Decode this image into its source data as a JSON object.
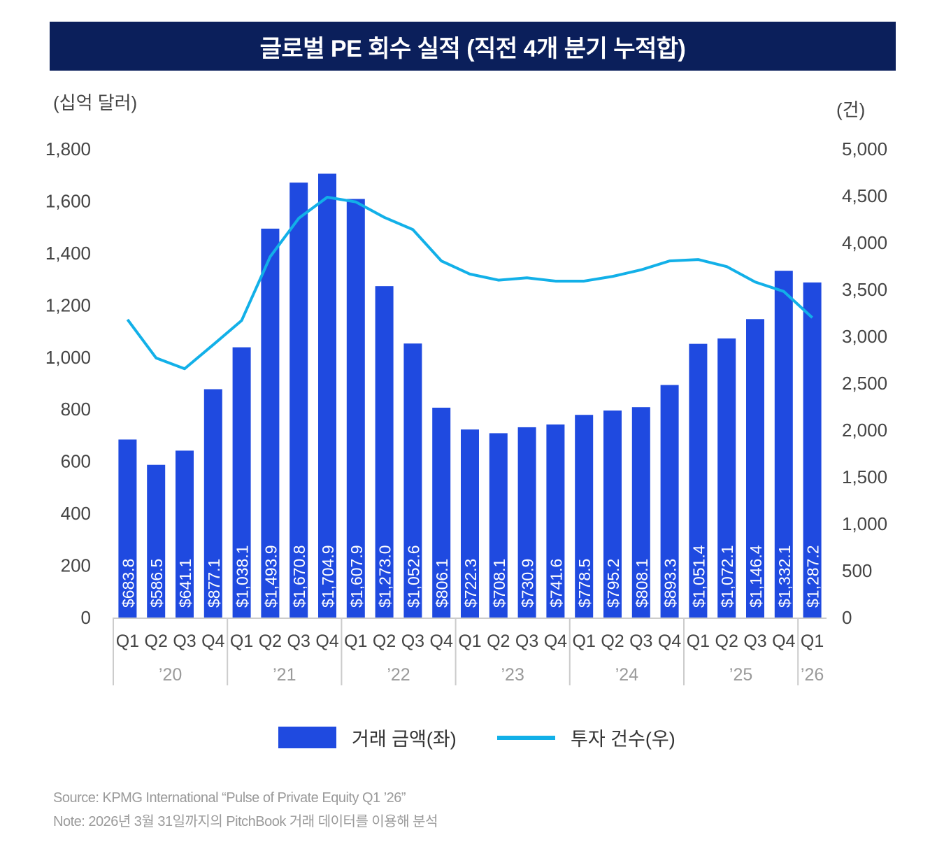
{
  "chart_data": {
    "type": "bar+line",
    "title": "글로벌 PE 회수 실적 (직전 4개 분기 누적합)",
    "left_unit": "(십억 달러)",
    "right_unit": "(건)",
    "categories": [
      "Q1",
      "Q2",
      "Q3",
      "Q4",
      "Q1",
      "Q2",
      "Q3",
      "Q4",
      "Q1",
      "Q2",
      "Q3",
      "Q4",
      "Q1",
      "Q2",
      "Q3",
      "Q4",
      "Q1",
      "Q2",
      "Q3",
      "Q4",
      "Q1",
      "Q2",
      "Q3",
      "Q4",
      "Q1"
    ],
    "years": [
      {
        "label": "’20",
        "span": 4
      },
      {
        "label": "’21",
        "span": 4
      },
      {
        "label": "’22",
        "span": 4
      },
      {
        "label": "’23",
        "span": 4
      },
      {
        "label": "’24",
        "span": 4
      },
      {
        "label": "’25",
        "span": 4
      },
      {
        "label": "’26",
        "span": 1
      }
    ],
    "series": [
      {
        "name": "거래 금액(좌)",
        "type": "bar",
        "axis": "left",
        "color": "#1f4ae0",
        "values": [
          683.8,
          586.5,
          641.1,
          877.1,
          1038.1,
          1493.9,
          1670.8,
          1704.9,
          1607.9,
          1273.0,
          1052.6,
          806.1,
          722.3,
          708.1,
          730.9,
          741.6,
          778.5,
          795.2,
          808.1,
          893.3,
          1051.4,
          1072.1,
          1146.4,
          1332.1,
          1287.2
        ],
        "labels": [
          "$683.8",
          "$586.5",
          "$641.1",
          "$877.1",
          "$1,038.1",
          "$1,493.9",
          "$1,670.8",
          "$1,704.9",
          "$1,607.9",
          "$1,273.0",
          "$1,052.6",
          "$806.1",
          "$722.3",
          "$708.1",
          "$730.9",
          "$741.6",
          "$778.5",
          "$795.2",
          "$808.1",
          "$893.3",
          "$1,051.4",
          "$1,072.1",
          "$1,146.4",
          "$1,332.1",
          "$1,287.2"
        ]
      },
      {
        "name": "투자 건수(우)",
        "type": "line",
        "axis": "right",
        "color": "#12b0e8",
        "values": [
          3180,
          2770,
          2655,
          2910,
          3170,
          3850,
          4260,
          4485,
          4435,
          4270,
          4140,
          3805,
          3665,
          3600,
          3625,
          3590,
          3590,
          3640,
          3710,
          3805,
          3820,
          3745,
          3580,
          3480,
          3200
        ]
      }
    ],
    "left_axis": {
      "min": 0,
      "max": 1800,
      "ticks": [
        "0",
        "200",
        "400",
        "600",
        "800",
        "1,000",
        "1,200",
        "1,400",
        "1,600",
        "1,800"
      ]
    },
    "right_axis": {
      "min": 0,
      "max": 5000,
      "ticks": [
        "0",
        "500",
        "1,000",
        "1,500",
        "2,000",
        "2,500",
        "3,000",
        "3,500",
        "4,000",
        "4,500",
        "5,000"
      ]
    },
    "grid": false,
    "legend_position": "bottom"
  },
  "footer": {
    "source": "Source: KPMG International “Pulse of Private Equity Q1 ’26”",
    "note": "Note: 2026년 3월 31일까지의 PitchBook 거래 데이터를 이용해 분석"
  }
}
